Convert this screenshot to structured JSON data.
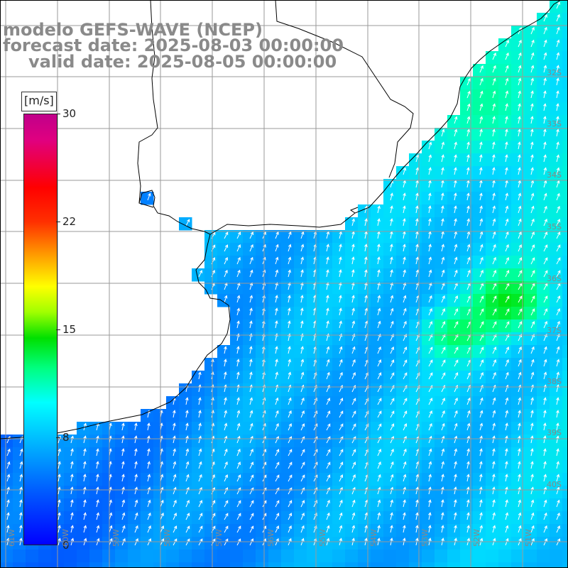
{
  "title": {
    "model": "modelo GEFS-WAVE (NCEP)",
    "forecast": "forecast date: 2025-08-03 00:00:00",
    "valid": "valid date: 2025-08-05 00:00:00"
  },
  "colorbar": {
    "unit": "[m/s]",
    "ticks": [
      "30",
      "22",
      "15",
      "8",
      "0"
    ],
    "tick_values": [
      30,
      22,
      15,
      8,
      0
    ],
    "colors": [
      "#0000ff",
      "#0060ff",
      "#00c0ff",
      "#00ffff",
      "#00ff80",
      "#00e000",
      "#a0ff00",
      "#ffff00",
      "#ffa000",
      "#ff3000",
      "#ff0000",
      "#c0008a"
    ]
  },
  "axes": {
    "lon_labels": [
      "61W",
      "60W",
      "59W",
      "58W",
      "57W",
      "56W",
      "55W",
      "54W",
      "53W",
      "52W",
      "51W"
    ],
    "lat_labels": [
      "32S",
      "33S",
      "34S",
      "35S",
      "36S",
      "37S",
      "38S",
      "39S",
      "40S"
    ]
  },
  "colors": {
    "land": "#ffffff",
    "grid": "#9a9a9a",
    "coast": "#000000",
    "arrows": "#ffffff",
    "title": "#8a8a8a"
  }
}
